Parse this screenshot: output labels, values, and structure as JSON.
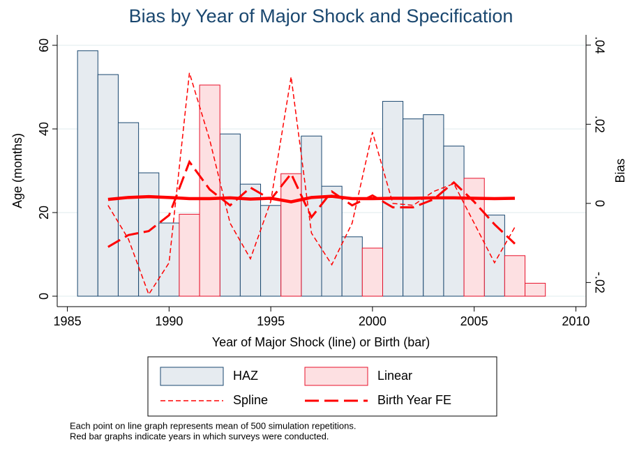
{
  "chart_data": {
    "type": "bar",
    "title": "Bias by Year of Major Shock and Specification",
    "x_label": "Year of Major Shock (line) or Birth (bar)",
    "y_label": "Age (months)",
    "y2_label": "Bias",
    "xlim": [
      1984.5,
      2010.5
    ],
    "xticks": [
      1985,
      1990,
      1995,
      2000,
      2005,
      2010
    ],
    "ylim": [
      -2.5,
      62.5
    ],
    "yticks": [
      0,
      20,
      40,
      60
    ],
    "y2lim": [
      -0.0261,
      0.0426
    ],
    "y2ticks": [
      {
        "value": -0.02,
        "label": "-.02"
      },
      0,
      {
        "value": 0.02,
        "label": ".02"
      },
      {
        "value": 0.04,
        "label": ".04"
      }
    ],
    "grid": true,
    "series": [
      {
        "name": "HAZ",
        "type": "bar",
        "color": "#e6ebf0",
        "stroke": "#1a476f",
        "x": [
          1986,
          1987,
          1988,
          1989,
          1990,
          1993,
          1994,
          1995,
          1997,
          1998,
          1999,
          2001,
          2002,
          2003,
          2004,
          2006
        ],
        "values": [
          58.7,
          53,
          41.5,
          29.5,
          17.5,
          38.8,
          26.8,
          21.7,
          38.3,
          26.3,
          14.2,
          46.6,
          42.4,
          43.4,
          35.9,
          19.4
        ]
      },
      {
        "name": "Linear",
        "type": "bar",
        "color": "#fde0e2",
        "stroke": "#e8102a",
        "x": [
          1991,
          1992,
          1996,
          2000,
          2005,
          2007,
          2008
        ],
        "values": [
          19.6,
          50.5,
          29.3,
          11.5,
          28.2,
          9.7,
          3.1
        ]
      },
      {
        "name": "Spline",
        "type": "line",
        "axis": "y2",
        "color": "#ff0000",
        "dash": "short",
        "x": [
          1987,
          1988,
          1989,
          1990,
          1991,
          1992,
          1993,
          1994,
          1995,
          1996,
          1997,
          1998,
          1999,
          2000,
          2001,
          2002,
          2003,
          2004,
          2005,
          2006,
          2007
        ],
        "values": [
          -0.0005,
          -0.009,
          -0.023,
          -0.015,
          0.033,
          0.016,
          -0.005,
          -0.014,
          0.0005,
          0.032,
          -0.0075,
          -0.0155,
          -0.005,
          0.018,
          0,
          -0.0005,
          0.003,
          0.005,
          -0.005,
          -0.015,
          -0.006
        ]
      },
      {
        "name": "Birth Year FE",
        "type": "line",
        "axis": "y2",
        "color": "#ff0000",
        "dash": "long",
        "x": [
          1987,
          1988,
          1989,
          1990,
          1991,
          1992,
          1993,
          1994,
          1995,
          1996,
          1997,
          1998,
          1999,
          2000,
          2001,
          2002,
          2003,
          2004,
          2005,
          2006,
          2007
        ],
        "values": [
          -0.011,
          -0.008,
          -0.007,
          -0.003,
          0.0105,
          0.0035,
          -0.0005,
          0.004,
          0.001,
          0.0075,
          -0.0035,
          0.003,
          -0.0005,
          0.002,
          -0.001,
          -0.001,
          0.001,
          0.0053,
          0.0004,
          -0.0053,
          -0.0102
        ]
      },
      {
        "type": "line",
        "axis": "y2",
        "color": "#ff0000",
        "dash": "solid",
        "x": [
          1987,
          1988,
          1989,
          1990,
          1991,
          1992,
          1993,
          1994,
          1995,
          1996,
          1997,
          1998,
          1999,
          2000,
          2001,
          2002,
          2003,
          2004,
          2005,
          2006,
          2007
        ],
        "values": [
          0.001,
          0.0015,
          0.0017,
          0.0015,
          0.0012,
          0.0012,
          0.0014,
          0.0011,
          0.0013,
          0.0004,
          0.0015,
          0.0018,
          0.0012,
          0.0012,
          0.0013,
          0.0013,
          0.0014,
          0.0014,
          0.0013,
          0.0012,
          0.0013
        ]
      }
    ],
    "notes": [
      "Each point on line graph represents mean of 500 simulation repetitions.",
      "Red bar graphs indicate years in which surveys were conducted."
    ]
  }
}
